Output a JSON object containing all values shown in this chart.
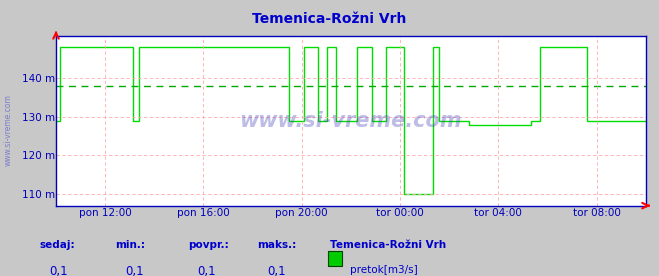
{
  "title": "Temenica-Rožni Vrh",
  "title_color": "#0000cc",
  "bg_color": "#c8c8c8",
  "plot_bg_color": "#ffffff",
  "line_color": "#00dd00",
  "avg_line_color": "#00aa00",
  "grid_color": "#ffaaaa",
  "axis_color": "#0000bb",
  "ylabel_color": "#0000bb",
  "xlabel_color": "#0000bb",
  "border_color": "#0000bb",
  "watermark": "www.si-vreme.com",
  "watermark_color": "#3333cc",
  "ymin": 107,
  "ymax": 151,
  "yticks": [
    110,
    120,
    130,
    140
  ],
  "ylabels": [
    "110 m",
    "120 m",
    "130 m",
    "140 m"
  ],
  "avg_value": 138,
  "x_tick_labels": [
    "pon 12:00",
    "pon 16:00",
    "pon 20:00",
    "tor 00:00",
    "tor 04:00",
    "tor 08:00"
  ],
  "footer_labels": [
    "sedaj:",
    "min.:",
    "povpr.:",
    "maks.:"
  ],
  "footer_values": [
    "0,1",
    "0,1",
    "0,1",
    "0,1"
  ],
  "station_name": "Temenica-Rožni Vrh",
  "legend_color": "#00cc00",
  "legend_label": "pretok[m3/s]",
  "data_x": [
    0.0,
    0.007,
    0.007,
    0.13,
    0.13,
    0.14,
    0.14,
    0.395,
    0.395,
    0.42,
    0.42,
    0.445,
    0.445,
    0.46,
    0.46,
    0.475,
    0.475,
    0.51,
    0.51,
    0.535,
    0.535,
    0.56,
    0.56,
    0.59,
    0.59,
    0.64,
    0.64,
    0.65,
    0.65,
    0.7,
    0.7,
    0.75,
    0.75,
    0.805,
    0.805,
    0.82,
    0.82,
    0.9,
    0.9,
    1.0
  ],
  "data_y": [
    129,
    129,
    148,
    148,
    129,
    129,
    148,
    148,
    129,
    129,
    148,
    148,
    129,
    129,
    148,
    148,
    129,
    129,
    148,
    148,
    129,
    129,
    148,
    148,
    110,
    110,
    148,
    148,
    129,
    129,
    128,
    128,
    128,
    128,
    129,
    129,
    148,
    148,
    129,
    129
  ],
  "total_hours": 24,
  "start_hour": 10
}
